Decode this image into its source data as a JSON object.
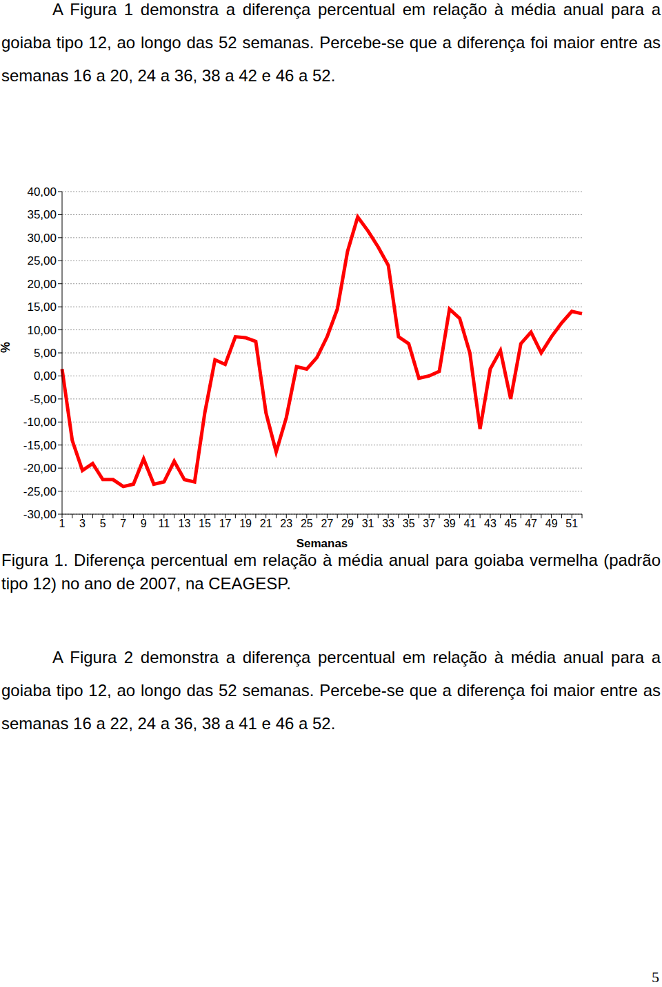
{
  "text_top": "A Figura 1 demonstra a diferença percentual em relação à média anual para a goiaba tipo 12, ao longo das 52 semanas. Percebe-se que a diferença foi maior entre as semanas 16 a 20, 24 a 36, 38 a 42 e 46 a 52.",
  "chart_data": {
    "type": "line",
    "x_label": "Semanas",
    "y_label": "%",
    "categories": [
      "1",
      null,
      "3",
      null,
      "5",
      null,
      "7",
      null,
      "9",
      null,
      "11",
      null,
      "13",
      null,
      "15",
      null,
      "17",
      null,
      "19",
      null,
      "21",
      null,
      "23",
      null,
      "25",
      null,
      "27",
      null,
      "29",
      null,
      "31",
      null,
      "33",
      null,
      "35",
      null,
      "37",
      null,
      "39",
      null,
      "41",
      null,
      "43",
      null,
      "45",
      null,
      "47",
      null,
      "49",
      null,
      "51",
      null
    ],
    "values": [
      1.5,
      -14,
      -20.5,
      -19,
      -22.5,
      -22.5,
      -24,
      -23.5,
      -18,
      -23.5,
      -23,
      -18.5,
      -22.5,
      -23,
      -8,
      3.5,
      2.5,
      8.5,
      8.3,
      7.5,
      -8,
      -16.5,
      -9,
      2,
      1.5,
      4,
      8.5,
      14.5,
      27,
      34.5,
      31.5,
      28,
      24,
      8.5,
      7,
      -0.5,
      0,
      1,
      14.5,
      12.5,
      5,
      -11.5,
      1.5,
      5.5,
      -5,
      7,
      9.5,
      5,
      8.5,
      11.5,
      14,
      13.5
    ],
    "color": "#ff0000",
    "ylim": [
      -30,
      40
    ],
    "yticks": [
      {
        "value": -30,
        "label": "-30,00"
      },
      {
        "value": -25,
        "label": "-25,00"
      },
      {
        "value": -20,
        "label": "-20,00"
      },
      {
        "value": -15,
        "label": "-15,00"
      },
      {
        "value": -10,
        "label": "-10,00"
      },
      {
        "value": -5,
        "label": "-5,00"
      },
      {
        "value": 0,
        "label": "0,00"
      },
      {
        "value": 5,
        "label": "5,00"
      },
      {
        "value": 10,
        "label": "10,00"
      },
      {
        "value": 15,
        "label": "15,00"
      },
      {
        "value": 20,
        "label": "20,00"
      },
      {
        "value": 25,
        "label": "25,00"
      },
      {
        "value": 30,
        "label": "30,00"
      },
      {
        "value": 35,
        "label": "35,00"
      },
      {
        "value": 40,
        "label": "40,00"
      }
    ],
    "grid": true
  },
  "caption": "Figura 1. Diferença percentual em relação à média anual para goiaba vermelha (padrão tipo 12) no ano de 2007, na CEAGESP.",
  "text_bottom": "A Figura 2 demonstra a diferença percentual em relação à média anual para a goiaba tipo 12, ao longo das 52 semanas. Percebe-se que a diferença foi maior entre as semanas 16 a 22, 24 a 36, 38 a 41 e 46 a 52.",
  "page_number": "5"
}
